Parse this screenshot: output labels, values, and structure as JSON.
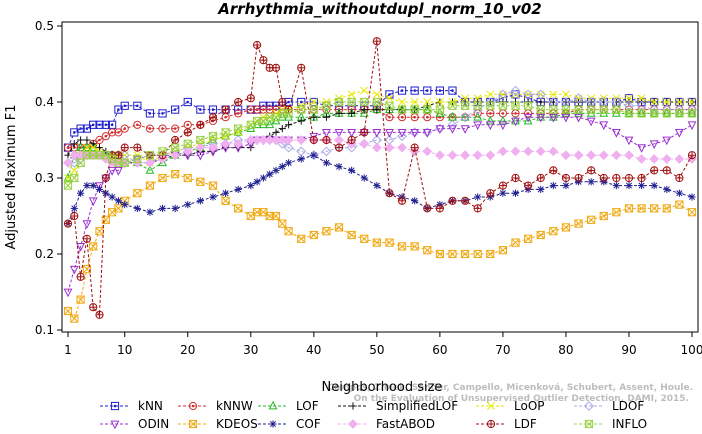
{
  "chart_data": {
    "type": "line",
    "title": "Arrhythmia_withoutdupl_norm_10_v02",
    "xlabel": "Neighborhood size",
    "ylabel": "Adjusted Maximum F1",
    "xlim": [
      1,
      100
    ],
    "ylim": [
      0.1,
      0.5
    ],
    "xticks": [
      1,
      10,
      20,
      30,
      40,
      50,
      60,
      70,
      80,
      90,
      100
    ],
    "yticks": [
      0.1,
      0.2,
      0.3,
      0.4,
      0.5
    ],
    "grid": false,
    "legend_position": "bottom",
    "watermark": "Campos, Zimek, Sander, Campello, Micenková, Schubert, Assent, Houle. On the Evaluation of Unsupervised Outlier Detection. DAMI, 2015.",
    "x_sampled": [
      1,
      2,
      3,
      4,
      5,
      6,
      7,
      8,
      9,
      10,
      12,
      14,
      16,
      18,
      20,
      22,
      24,
      26,
      28,
      30,
      31,
      32,
      33,
      34,
      35,
      36,
      38,
      40,
      42,
      44,
      46,
      48,
      50,
      52,
      54,
      56,
      58,
      60,
      62,
      64,
      66,
      68,
      70,
      72,
      74,
      76,
      78,
      80,
      82,
      84,
      86,
      88,
      90,
      92,
      94,
      96,
      98,
      100
    ],
    "series": [
      {
        "name": "kNN",
        "color": "#1f1fd0",
        "marker": "square-dot",
        "values": [
          0.34,
          0.36,
          0.365,
          0.365,
          0.37,
          0.37,
          0.37,
          0.37,
          0.39,
          0.395,
          0.395,
          0.385,
          0.385,
          0.39,
          0.4,
          0.39,
          0.39,
          0.39,
          0.39,
          0.39,
          0.39,
          0.395,
          0.395,
          0.395,
          0.395,
          0.4,
          0.4,
          0.4,
          0.395,
          0.395,
          0.395,
          0.395,
          0.395,
          0.41,
          0.415,
          0.415,
          0.415,
          0.415,
          0.415,
          0.4,
          0.4,
          0.4,
          0.405,
          0.41,
          0.405,
          0.4,
          0.4,
          0.4,
          0.4,
          0.4,
          0.4,
          0.4,
          0.405,
          0.4,
          0.4,
          0.4,
          0.4,
          0.4
        ]
      },
      {
        "name": "kNNW",
        "color": "#d03030",
        "marker": "circle-dot",
        "values": [
          0.34,
          0.34,
          0.34,
          0.34,
          0.345,
          0.35,
          0.355,
          0.36,
          0.36,
          0.365,
          0.37,
          0.365,
          0.365,
          0.365,
          0.37,
          0.37,
          0.375,
          0.38,
          0.385,
          0.39,
          0.39,
          0.39,
          0.39,
          0.39,
          0.39,
          0.39,
          0.39,
          0.39,
          0.39,
          0.39,
          0.39,
          0.39,
          0.39,
          0.38,
          0.38,
          0.38,
          0.38,
          0.38,
          0.38,
          0.38,
          0.385,
          0.385,
          0.385,
          0.385,
          0.385,
          0.385,
          0.385,
          0.385,
          0.39,
          0.39,
          0.39,
          0.39,
          0.39,
          0.39,
          0.39,
          0.39,
          0.39,
          0.39
        ]
      },
      {
        "name": "LOF",
        "color": "#22bb22",
        "marker": "triangle-up",
        "values": [
          0.3,
          0.33,
          0.34,
          0.34,
          0.34,
          0.33,
          0.33,
          0.33,
          0.33,
          0.32,
          0.32,
          0.31,
          0.32,
          0.33,
          0.335,
          0.34,
          0.35,
          0.355,
          0.36,
          0.365,
          0.37,
          0.37,
          0.37,
          0.375,
          0.38,
          0.38,
          0.38,
          0.38,
          0.385,
          0.385,
          0.385,
          0.385,
          0.39,
          0.39,
          0.39,
          0.39,
          0.39,
          0.385,
          0.38,
          0.38,
          0.38,
          0.375,
          0.375,
          0.375,
          0.375,
          0.38,
          0.38,
          0.385,
          0.385,
          0.385,
          0.385,
          0.385,
          0.385,
          0.385,
          0.385,
          0.385,
          0.385,
          0.385
        ]
      },
      {
        "name": "SimplifiedLOF",
        "color": "#111111",
        "marker": "plus",
        "values": [
          0.33,
          0.345,
          0.35,
          0.35,
          0.345,
          0.34,
          0.335,
          0.33,
          0.325,
          0.32,
          0.32,
          0.32,
          0.325,
          0.33,
          0.33,
          0.335,
          0.335,
          0.34,
          0.34,
          0.34,
          0.35,
          0.35,
          0.355,
          0.36,
          0.365,
          0.37,
          0.375,
          0.38,
          0.38,
          0.385,
          0.385,
          0.39,
          0.39,
          0.39,
          0.39,
          0.39,
          0.395,
          0.4,
          0.4,
          0.4,
          0.4,
          0.4,
          0.4,
          0.4,
          0.4,
          0.4,
          0.4,
          0.4,
          0.4,
          0.4,
          0.4,
          0.4,
          0.4,
          0.4,
          0.4,
          0.4,
          0.4,
          0.4
        ]
      },
      {
        "name": "LoOP",
        "color": "#e8e800",
        "marker": "cross",
        "values": [
          0.3,
          0.31,
          0.33,
          0.34,
          0.34,
          0.335,
          0.33,
          0.33,
          0.33,
          0.33,
          0.33,
          0.32,
          0.33,
          0.335,
          0.34,
          0.345,
          0.35,
          0.355,
          0.36,
          0.37,
          0.375,
          0.38,
          0.38,
          0.385,
          0.39,
          0.39,
          0.395,
          0.4,
          0.4,
          0.405,
          0.41,
          0.415,
          0.41,
          0.405,
          0.4,
          0.4,
          0.4,
          0.4,
          0.4,
          0.405,
          0.405,
          0.41,
          0.41,
          0.41,
          0.41,
          0.41,
          0.41,
          0.41,
          0.405,
          0.405,
          0.405,
          0.405,
          0.405,
          0.405,
          0.4,
          0.4,
          0.4,
          0.4
        ]
      },
      {
        "name": "LDOF",
        "color": "#a8a8e8",
        "marker": "diamond",
        "values": [
          0.32,
          0.32,
          0.325,
          0.33,
          0.33,
          0.33,
          0.33,
          0.33,
          0.33,
          0.33,
          0.32,
          0.32,
          0.33,
          0.335,
          0.34,
          0.34,
          0.345,
          0.345,
          0.35,
          0.35,
          0.35,
          0.35,
          0.35,
          0.35,
          0.345,
          0.34,
          0.335,
          0.33,
          0.335,
          0.34,
          0.34,
          0.345,
          0.35,
          0.35,
          0.355,
          0.36,
          0.36,
          0.365,
          0.37,
          0.38,
          0.39,
          0.4,
          0.41,
          0.415,
          0.41,
          0.41,
          0.4,
          0.4,
          0.405,
          0.4,
          0.4,
          0.4,
          0.395,
          0.395,
          0.39,
          0.39,
          0.39,
          0.39
        ]
      },
      {
        "name": "ODIN",
        "color": "#9a30d0",
        "marker": "triangle-down",
        "values": [
          0.15,
          0.18,
          0.21,
          0.24,
          0.27,
          0.29,
          0.3,
          0.31,
          0.31,
          0.32,
          0.325,
          0.33,
          0.33,
          0.33,
          0.33,
          0.33,
          0.335,
          0.34,
          0.34,
          0.345,
          0.35,
          0.35,
          0.35,
          0.35,
          0.35,
          0.35,
          0.35,
          0.355,
          0.36,
          0.36,
          0.36,
          0.36,
          0.36,
          0.36,
          0.36,
          0.36,
          0.36,
          0.365,
          0.365,
          0.365,
          0.37,
          0.37,
          0.37,
          0.375,
          0.38,
          0.38,
          0.38,
          0.38,
          0.38,
          0.375,
          0.37,
          0.36,
          0.35,
          0.34,
          0.345,
          0.35,
          0.36,
          0.37
        ]
      },
      {
        "name": "KDEOS",
        "color": "#f0a810",
        "marker": "square-x",
        "values": [
          0.125,
          0.115,
          0.14,
          0.18,
          0.21,
          0.23,
          0.245,
          0.255,
          0.26,
          0.27,
          0.28,
          0.29,
          0.3,
          0.305,
          0.3,
          0.295,
          0.29,
          0.27,
          0.26,
          0.25,
          0.255,
          0.255,
          0.25,
          0.25,
          0.24,
          0.23,
          0.22,
          0.225,
          0.23,
          0.235,
          0.225,
          0.22,
          0.215,
          0.215,
          0.21,
          0.21,
          0.205,
          0.2,
          0.2,
          0.2,
          0.2,
          0.2,
          0.205,
          0.215,
          0.22,
          0.225,
          0.23,
          0.235,
          0.24,
          0.245,
          0.25,
          0.255,
          0.26,
          0.26,
          0.26,
          0.26,
          0.265,
          0.255
        ]
      },
      {
        "name": "COF",
        "color": "#1f1f90",
        "marker": "asterisk",
        "values": [
          0.24,
          0.26,
          0.28,
          0.29,
          0.29,
          0.285,
          0.28,
          0.275,
          0.27,
          0.265,
          0.26,
          0.255,
          0.26,
          0.26,
          0.265,
          0.27,
          0.275,
          0.28,
          0.285,
          0.29,
          0.295,
          0.3,
          0.305,
          0.31,
          0.315,
          0.32,
          0.325,
          0.33,
          0.32,
          0.315,
          0.31,
          0.3,
          0.29,
          0.28,
          0.275,
          0.27,
          0.26,
          0.265,
          0.27,
          0.27,
          0.275,
          0.275,
          0.28,
          0.28,
          0.285,
          0.285,
          0.29,
          0.29,
          0.295,
          0.295,
          0.295,
          0.29,
          0.29,
          0.29,
          0.29,
          0.285,
          0.28,
          0.275
        ]
      },
      {
        "name": "FastABOD",
        "color": "#f0b0f0",
        "marker": "diamond-filled",
        "values": [
          0.32,
          0.33,
          0.33,
          0.33,
          0.33,
          0.33,
          0.325,
          0.32,
          0.32,
          0.32,
          0.32,
          0.32,
          0.325,
          0.33,
          0.335,
          0.34,
          0.34,
          0.345,
          0.345,
          0.35,
          0.35,
          0.35,
          0.35,
          0.35,
          0.35,
          0.35,
          0.35,
          0.35,
          0.35,
          0.35,
          0.345,
          0.345,
          0.34,
          0.34,
          0.34,
          0.335,
          0.335,
          0.33,
          0.33,
          0.33,
          0.33,
          0.33,
          0.335,
          0.335,
          0.335,
          0.335,
          0.335,
          0.33,
          0.33,
          0.33,
          0.33,
          0.33,
          0.33,
          0.325,
          0.325,
          0.325,
          0.325,
          0.325
        ]
      },
      {
        "name": "LDF",
        "color": "#a01010",
        "marker": "circle-plus",
        "values": [
          0.24,
          0.25,
          0.17,
          0.22,
          0.13,
          0.12,
          0.3,
          0.33,
          0.33,
          0.34,
          0.34,
          0.33,
          0.33,
          0.35,
          0.36,
          0.37,
          0.38,
          0.39,
          0.4,
          0.405,
          0.475,
          0.455,
          0.445,
          0.445,
          0.4,
          0.39,
          0.445,
          0.35,
          0.35,
          0.34,
          0.35,
          0.36,
          0.48,
          0.28,
          0.27,
          0.34,
          0.26,
          0.26,
          0.27,
          0.27,
          0.26,
          0.28,
          0.29,
          0.3,
          0.29,
          0.3,
          0.31,
          0.3,
          0.3,
          0.31,
          0.3,
          0.3,
          0.3,
          0.3,
          0.31,
          0.31,
          0.3,
          0.33
        ]
      },
      {
        "name": "INFLO",
        "color": "#98d040",
        "marker": "square-x",
        "values": [
          0.29,
          0.3,
          0.32,
          0.33,
          0.33,
          0.33,
          0.33,
          0.325,
          0.32,
          0.32,
          0.325,
          0.33,
          0.335,
          0.34,
          0.345,
          0.35,
          0.355,
          0.36,
          0.365,
          0.37,
          0.375,
          0.375,
          0.38,
          0.38,
          0.385,
          0.385,
          0.39,
          0.39,
          0.395,
          0.4,
          0.4,
          0.4,
          0.4,
          0.395,
          0.39,
          0.39,
          0.39,
          0.39,
          0.395,
          0.395,
          0.395,
          0.395,
          0.395,
          0.395,
          0.395,
          0.39,
          0.39,
          0.39,
          0.39,
          0.39,
          0.39,
          0.39,
          0.385,
          0.385,
          0.385,
          0.385,
          0.385,
          0.385
        ]
      }
    ]
  }
}
